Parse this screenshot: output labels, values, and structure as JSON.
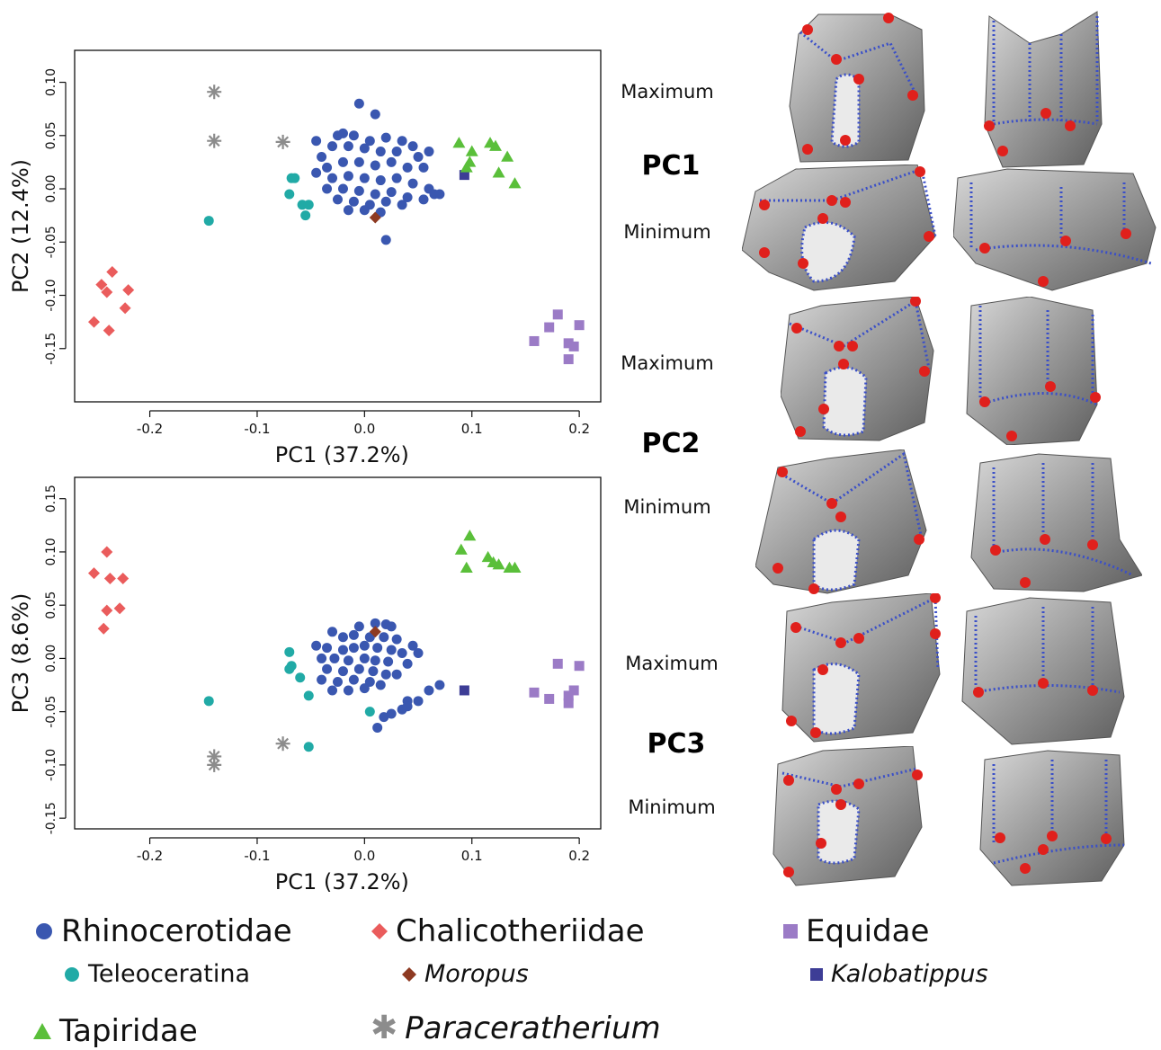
{
  "colors": {
    "Rhinocerotidae": "#3a57b0",
    "Teleoceratina": "#21aaa6",
    "Chalicotheriidae": "#ea5c5c",
    "Moropus": "#8e3a22",
    "Equidae": "#9b7bc6",
    "Kalobatippus": "#3d3d96",
    "Tapiridae": "#5abf3a",
    "Paraceratherium": "#8c8c8c"
  },
  "chart_data": [
    {
      "type": "scatter",
      "xlabel": "PC1 (37.2%)",
      "ylabel": "PC2 (12.4%)",
      "xlim": [
        -0.27,
        0.22
      ],
      "ylim": [
        -0.2,
        0.13
      ],
      "xticks": [
        "-0.2",
        "-0.1",
        "0.0",
        "0.1",
        "0.2"
      ],
      "yticks": [
        "0.10",
        "0.05",
        "0.00",
        "-0.05",
        "-0.10",
        "-0.15"
      ],
      "series": [
        {
          "name": "Rhinocerotidae",
          "marker": "circle",
          "points": [
            [
              -0.005,
              0.08
            ],
            [
              0.01,
              0.07
            ],
            [
              -0.02,
              0.052
            ],
            [
              -0.025,
              0.05
            ],
            [
              -0.01,
              0.05
            ],
            [
              0.005,
              0.045
            ],
            [
              0.02,
              0.048
            ],
            [
              0.035,
              0.045
            ],
            [
              -0.03,
              0.04
            ],
            [
              -0.015,
              0.04
            ],
            [
              0.0,
              0.038
            ],
            [
              0.015,
              0.035
            ],
            [
              0.03,
              0.035
            ],
            [
              0.045,
              0.04
            ],
            [
              0.05,
              0.03
            ],
            [
              -0.04,
              0.03
            ],
            [
              -0.035,
              0.02
            ],
            [
              -0.02,
              0.025
            ],
            [
              -0.005,
              0.025
            ],
            [
              0.01,
              0.022
            ],
            [
              0.025,
              0.025
            ],
            [
              0.04,
              0.02
            ],
            [
              0.055,
              0.02
            ],
            [
              -0.045,
              0.015
            ],
            [
              -0.03,
              0.01
            ],
            [
              -0.015,
              0.012
            ],
            [
              0.0,
              0.01
            ],
            [
              0.015,
              0.008
            ],
            [
              0.03,
              0.01
            ],
            [
              0.045,
              0.005
            ],
            [
              0.06,
              0.0
            ],
            [
              -0.035,
              0.0
            ],
            [
              -0.02,
              0.0
            ],
            [
              -0.005,
              -0.002
            ],
            [
              0.01,
              -0.005
            ],
            [
              0.025,
              -0.003
            ],
            [
              0.04,
              -0.008
            ],
            [
              0.055,
              -0.01
            ],
            [
              -0.025,
              -0.01
            ],
            [
              -0.01,
              -0.012
            ],
            [
              0.005,
              -0.015
            ],
            [
              0.02,
              -0.012
            ],
            [
              0.035,
              -0.015
            ],
            [
              0.065,
              -0.005
            ],
            [
              0.07,
              -0.005
            ],
            [
              -0.015,
              -0.02
            ],
            [
              0.0,
              -0.02
            ],
            [
              0.015,
              -0.022
            ],
            [
              0.02,
              -0.048
            ],
            [
              -0.045,
              0.045
            ],
            [
              0.06,
              0.035
            ]
          ]
        },
        {
          "name": "Teleoceratina",
          "marker": "circle",
          "points": [
            [
              -0.145,
              -0.03
            ],
            [
              -0.065,
              0.01
            ],
            [
              -0.068,
              0.01
            ],
            [
              -0.07,
              -0.005
            ],
            [
              -0.058,
              -0.015
            ],
            [
              -0.052,
              -0.015
            ],
            [
              -0.055,
              -0.025
            ]
          ]
        },
        {
          "name": "Chalicotheriidae",
          "marker": "diamond",
          "points": [
            [
              -0.235,
              -0.078
            ],
            [
              -0.245,
              -0.09
            ],
            [
              -0.24,
              -0.097
            ],
            [
              -0.22,
              -0.095
            ],
            [
              -0.223,
              -0.112
            ],
            [
              -0.252,
              -0.125
            ],
            [
              -0.238,
              -0.133
            ]
          ]
        },
        {
          "name": "Moropus",
          "marker": "diamond",
          "points": [
            [
              0.01,
              -0.027
            ]
          ]
        },
        {
          "name": "Equidae",
          "marker": "square",
          "points": [
            [
              0.18,
              -0.118
            ],
            [
              0.2,
              -0.128
            ],
            [
              0.172,
              -0.13
            ],
            [
              0.158,
              -0.143
            ],
            [
              0.19,
              -0.145
            ],
            [
              0.195,
              -0.148
            ],
            [
              0.19,
              -0.16
            ]
          ]
        },
        {
          "name": "Kalobatippus",
          "marker": "square",
          "points": [
            [
              0.093,
              0.013
            ]
          ]
        },
        {
          "name": "Tapiridae",
          "marker": "triangle",
          "points": [
            [
              0.088,
              0.043
            ],
            [
              0.117,
              0.043
            ],
            [
              0.122,
              0.04
            ],
            [
              0.1,
              0.035
            ],
            [
              0.133,
              0.03
            ],
            [
              0.098,
              0.025
            ],
            [
              0.095,
              0.02
            ],
            [
              0.125,
              0.015
            ],
            [
              0.14,
              0.005
            ]
          ]
        },
        {
          "name": "Paraceratherium",
          "marker": "asterisk",
          "points": [
            [
              -0.14,
              0.091
            ],
            [
              -0.14,
              0.045
            ],
            [
              -0.076,
              0.044
            ]
          ]
        }
      ]
    },
    {
      "type": "scatter",
      "xlabel": "PC1 (37.2%)",
      "ylabel": "PC3 (8.6%)",
      "xlim": [
        -0.27,
        0.22
      ],
      "ylim": [
        -0.16,
        0.17
      ],
      "xticks": [
        "-0.2",
        "-0.1",
        "0.0",
        "0.1",
        "0.2"
      ],
      "yticks": [
        "0.15",
        "0.10",
        "0.05",
        "0.00",
        "-0.05",
        "-0.10",
        "-0.15"
      ],
      "series": [
        {
          "name": "Rhinocerotidae",
          "marker": "circle",
          "points": [
            [
              -0.005,
              0.03
            ],
            [
              0.01,
              0.033
            ],
            [
              0.02,
              0.032
            ],
            [
              0.025,
              0.03
            ],
            [
              -0.045,
              0.012
            ],
            [
              0.045,
              0.012
            ],
            [
              -0.03,
              0.025
            ],
            [
              -0.02,
              0.02
            ],
            [
              -0.01,
              0.022
            ],
            [
              0.005,
              0.02
            ],
            [
              0.018,
              0.02
            ],
            [
              0.03,
              0.018
            ],
            [
              -0.035,
              0.01
            ],
            [
              -0.02,
              0.008
            ],
            [
              -0.01,
              0.01
            ],
            [
              0.0,
              0.012
            ],
            [
              0.012,
              0.01
            ],
            [
              0.025,
              0.008
            ],
            [
              0.035,
              0.005
            ],
            [
              0.05,
              0.005
            ],
            [
              -0.04,
              0.0
            ],
            [
              -0.028,
              0.0
            ],
            [
              -0.015,
              -0.002
            ],
            [
              0.0,
              0.0
            ],
            [
              0.01,
              -0.002
            ],
            [
              0.022,
              -0.003
            ],
            [
              0.04,
              -0.005
            ],
            [
              -0.035,
              -0.01
            ],
            [
              -0.02,
              -0.012
            ],
            [
              -0.005,
              -0.01
            ],
            [
              0.008,
              -0.012
            ],
            [
              0.02,
              -0.015
            ],
            [
              0.03,
              -0.015
            ],
            [
              -0.04,
              -0.02
            ],
            [
              -0.025,
              -0.022
            ],
            [
              -0.01,
              -0.02
            ],
            [
              0.005,
              -0.022
            ],
            [
              0.015,
              -0.025
            ],
            [
              -0.03,
              -0.03
            ],
            [
              -0.015,
              -0.03
            ],
            [
              0.0,
              -0.028
            ],
            [
              0.07,
              -0.025
            ],
            [
              0.06,
              -0.03
            ],
            [
              0.04,
              -0.04
            ],
            [
              0.05,
              -0.04
            ],
            [
              0.035,
              -0.048
            ],
            [
              0.025,
              -0.052
            ],
            [
              0.018,
              -0.055
            ],
            [
              0.012,
              -0.065
            ],
            [
              0.04,
              -0.045
            ]
          ]
        },
        {
          "name": "Teleoceratina",
          "marker": "circle",
          "points": [
            [
              -0.145,
              -0.04
            ],
            [
              -0.07,
              0.006
            ],
            [
              -0.068,
              -0.007
            ],
            [
              -0.07,
              -0.01
            ],
            [
              -0.06,
              -0.018
            ],
            [
              -0.052,
              -0.035
            ],
            [
              -0.052,
              -0.083
            ],
            [
              0.005,
              -0.05
            ]
          ]
        },
        {
          "name": "Chalicotheriidae",
          "marker": "diamond",
          "points": [
            [
              -0.24,
              0.1
            ],
            [
              -0.252,
              0.08
            ],
            [
              -0.237,
              0.075
            ],
            [
              -0.225,
              0.075
            ],
            [
              -0.24,
              0.045
            ],
            [
              -0.228,
              0.047
            ],
            [
              -0.243,
              0.028
            ]
          ]
        },
        {
          "name": "Moropus",
          "marker": "diamond",
          "points": [
            [
              0.01,
              0.025
            ]
          ]
        },
        {
          "name": "Equidae",
          "marker": "square",
          "points": [
            [
              0.18,
              -0.005
            ],
            [
              0.2,
              -0.007
            ],
            [
              0.158,
              -0.032
            ],
            [
              0.172,
              -0.038
            ],
            [
              0.19,
              -0.035
            ],
            [
              0.195,
              -0.03
            ],
            [
              0.19,
              -0.042
            ]
          ]
        },
        {
          "name": "Kalobatippus",
          "marker": "square",
          "points": [
            [
              0.093,
              -0.03
            ]
          ]
        },
        {
          "name": "Tapiridae",
          "marker": "triangle",
          "points": [
            [
              0.098,
              0.115
            ],
            [
              0.09,
              0.102
            ],
            [
              0.115,
              0.095
            ],
            [
              0.12,
              0.09
            ],
            [
              0.125,
              0.088
            ],
            [
              0.135,
              0.085
            ],
            [
              0.14,
              0.085
            ],
            [
              0.095,
              0.085
            ]
          ]
        },
        {
          "name": "Paraceratherium",
          "marker": "asterisk",
          "points": [
            [
              -0.14,
              -0.092
            ],
            [
              -0.14,
              -0.1
            ],
            [
              -0.076,
              -0.08
            ]
          ]
        }
      ]
    }
  ],
  "side_panel": {
    "pc1": {
      "title": "PC1",
      "max": "Maximum",
      "min": "Minimum"
    },
    "pc2": {
      "title": "PC2",
      "max": "Maximum",
      "min": "Minimum"
    },
    "pc3": {
      "title": "PC3",
      "max": "Maximum",
      "min": "Minimum"
    }
  },
  "legend": {
    "rhinocerotidae": "Rhinocerotidae",
    "teleoceratina": "Teleoceratina",
    "chalicotheriidae": "Chalicotheriidae",
    "moropus": "Moropus",
    "equidae": "Equidae",
    "kalobatippus": "Kalobatippus",
    "tapiridae": "Tapiridae",
    "paraceratherium": "Paraceratherium"
  }
}
